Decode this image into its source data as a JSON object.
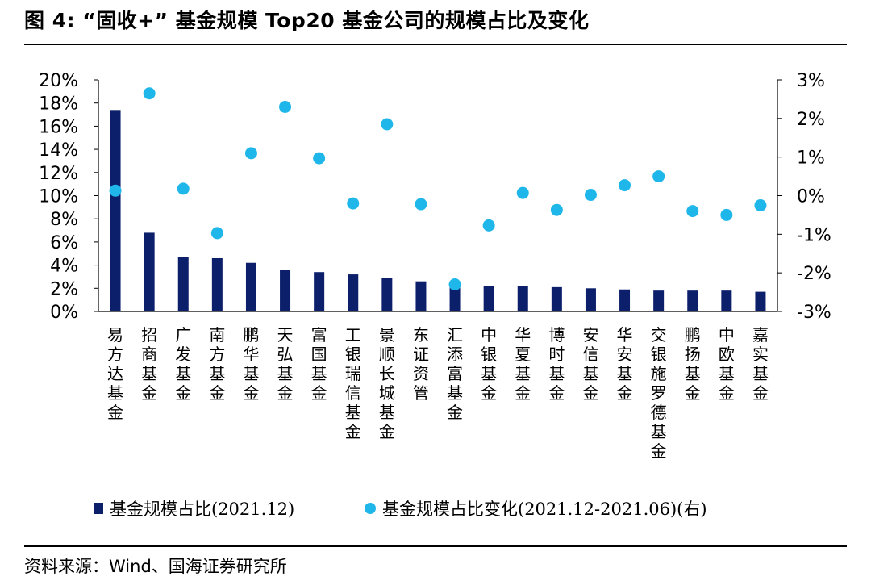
{
  "title": "图 4: “固收+” 基金规模 Top20 基金公司的规模占比及变化",
  "source": "资料来源：Wind、国海证券研究所",
  "colors": {
    "bar": "#0c1f6b",
    "dot": "#1fb7ea",
    "axis": "#000000"
  },
  "chart_data": {
    "type": "bar",
    "categories": [
      "易方达基金",
      "招商基金",
      "广发基金",
      "南方基金",
      "鹏华基金",
      "天弘基金",
      "富国基金",
      "工银瑞信基金",
      "景顺长城基金",
      "东证资管",
      "汇添富基金",
      "中银基金",
      "华夏基金",
      "博时基金",
      "安信基金",
      "华安基金",
      "交银施罗德基金",
      "鹏扬基金",
      "中欧基金",
      "嘉实基金"
    ],
    "series": [
      {
        "name": "基金规模占比(2021.12)",
        "type": "bar",
        "axis": "left",
        "values": [
          17.4,
          6.8,
          4.7,
          4.6,
          4.2,
          3.6,
          3.4,
          3.2,
          2.9,
          2.6,
          2.4,
          2.2,
          2.2,
          2.1,
          2.0,
          1.9,
          1.8,
          1.8,
          1.8,
          1.7
        ]
      },
      {
        "name": "基金规模占比变化(2021.12-2021.06)(右)",
        "type": "scatter",
        "axis": "right",
        "values": [
          0.13,
          2.65,
          0.18,
          -0.97,
          1.1,
          2.3,
          0.97,
          -0.2,
          1.85,
          -0.22,
          -2.3,
          -0.77,
          0.07,
          -0.37,
          0.02,
          0.27,
          0.5,
          -0.4,
          -0.5,
          -0.25
        ]
      }
    ],
    "y_left": {
      "min": 0,
      "max": 20,
      "ticks": [
        "0%",
        "2%",
        "4%",
        "6%",
        "8%",
        "10%",
        "12%",
        "14%",
        "16%",
        "18%",
        "20%"
      ]
    },
    "y_right": {
      "min": -3,
      "max": 3,
      "ticks": [
        "-3%",
        "-2%",
        "-1%",
        "0%",
        "1%",
        "2%",
        "3%"
      ]
    },
    "legend_position": "bottom",
    "grid": false
  }
}
